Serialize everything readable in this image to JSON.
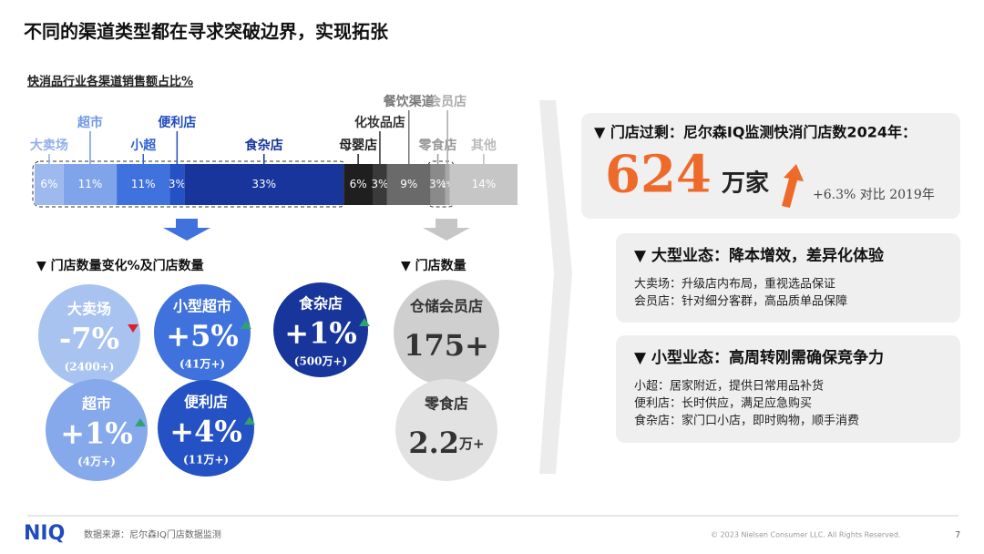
{
  "header": {
    "title": "不同的渠道类型都在寻求突破边界，实现拓张"
  },
  "chart_data": {
    "type": "stacked-bar",
    "title": "快消品行业各渠道销售额占比%",
    "categories": [
      "大卖场",
      "超市",
      "小超",
      "便利店",
      "食杂店",
      "母婴店",
      "化妆品店",
      "餐饮渠道",
      "零食店",
      "会员店",
      "其他"
    ],
    "values": [
      6,
      11,
      11,
      3,
      33,
      6,
      3,
      9,
      3,
      1,
      14
    ],
    "value_labels": [
      "6%",
      "11%",
      "11%",
      "3%",
      "33%",
      "6%",
      "3%",
      "9%",
      "3%",
      "1%",
      "14%"
    ],
    "colors": [
      "#9db9ee",
      "#7fa4ea",
      "#3f72dc",
      "#2451c3",
      "#17359b",
      "#1f1f1f",
      "#3a3a3a",
      "#6a6a6a",
      "#8a8a8a",
      "#a8a8a8",
      "#c6c6c6"
    ],
    "label_colors": [
      "#8fb0ea",
      "#6f98e6",
      "#2f62d2",
      "#1f4bbd",
      "#17359b",
      "#222222",
      "#333333",
      "#777777",
      "#999999",
      "#aaaaaa",
      "#bbbbbb"
    ]
  },
  "store_change": {
    "title": "▼  门店数量变化%及门店数量",
    "items": [
      {
        "name": "大卖场",
        "change": "-7%",
        "count": "(2400+)",
        "trend": "down",
        "color": "#a9c3f0"
      },
      {
        "name": "小型超市",
        "change": "+5%",
        "count": "(41万+)",
        "trend": "up",
        "color": "#3f72dc"
      },
      {
        "name": "食杂店",
        "change": "+1%",
        "count": "(500万+)",
        "trend": "up",
        "color": "#17359b"
      },
      {
        "name": "超市",
        "change": "+1%",
        "count": "(4万+)",
        "trend": "up",
        "color": "#86a9ec"
      },
      {
        "name": "便利店",
        "change": "+4%",
        "count": "(11万+)",
        "trend": "up",
        "color": "#2451c3"
      }
    ]
  },
  "store_count": {
    "title": "▼  门店数量",
    "items": [
      {
        "name": "仓储会员店",
        "count": "175+",
        "color": "#cfcfcf"
      },
      {
        "name": "零食店",
        "count": "2.2",
        "unit": "万+",
        "color": "#e2e2e2"
      }
    ]
  },
  "overview": {
    "title": "▼  门店过剩：尼尔森IQ监测快消门店数2024年：",
    "number": "624",
    "unit": "万家",
    "comparison": "+6.3% 对比 2019年"
  },
  "cards": [
    {
      "title": "▼  大型业态：降本增效，差异化体验",
      "lines": [
        "大卖场：升级店内布局，重视选品保证",
        "会员店：针对细分客群，高品质单品保障"
      ]
    },
    {
      "title": "▼  小型业态：高周转刚需确保竞争力",
      "lines": [
        "小超：居家附近，提供日常用品补货",
        "便利店：长时供应，满足应急购买",
        "食杂店：家门口小店，即时购物，顺手消费"
      ]
    }
  ],
  "footer": {
    "logo": "NIQ",
    "source": "数据来源：尼尔森IQ门店数据监测",
    "copyright": "© 2023 Nielsen Consumer LLC. All Rights Reserved.",
    "page": "7"
  }
}
